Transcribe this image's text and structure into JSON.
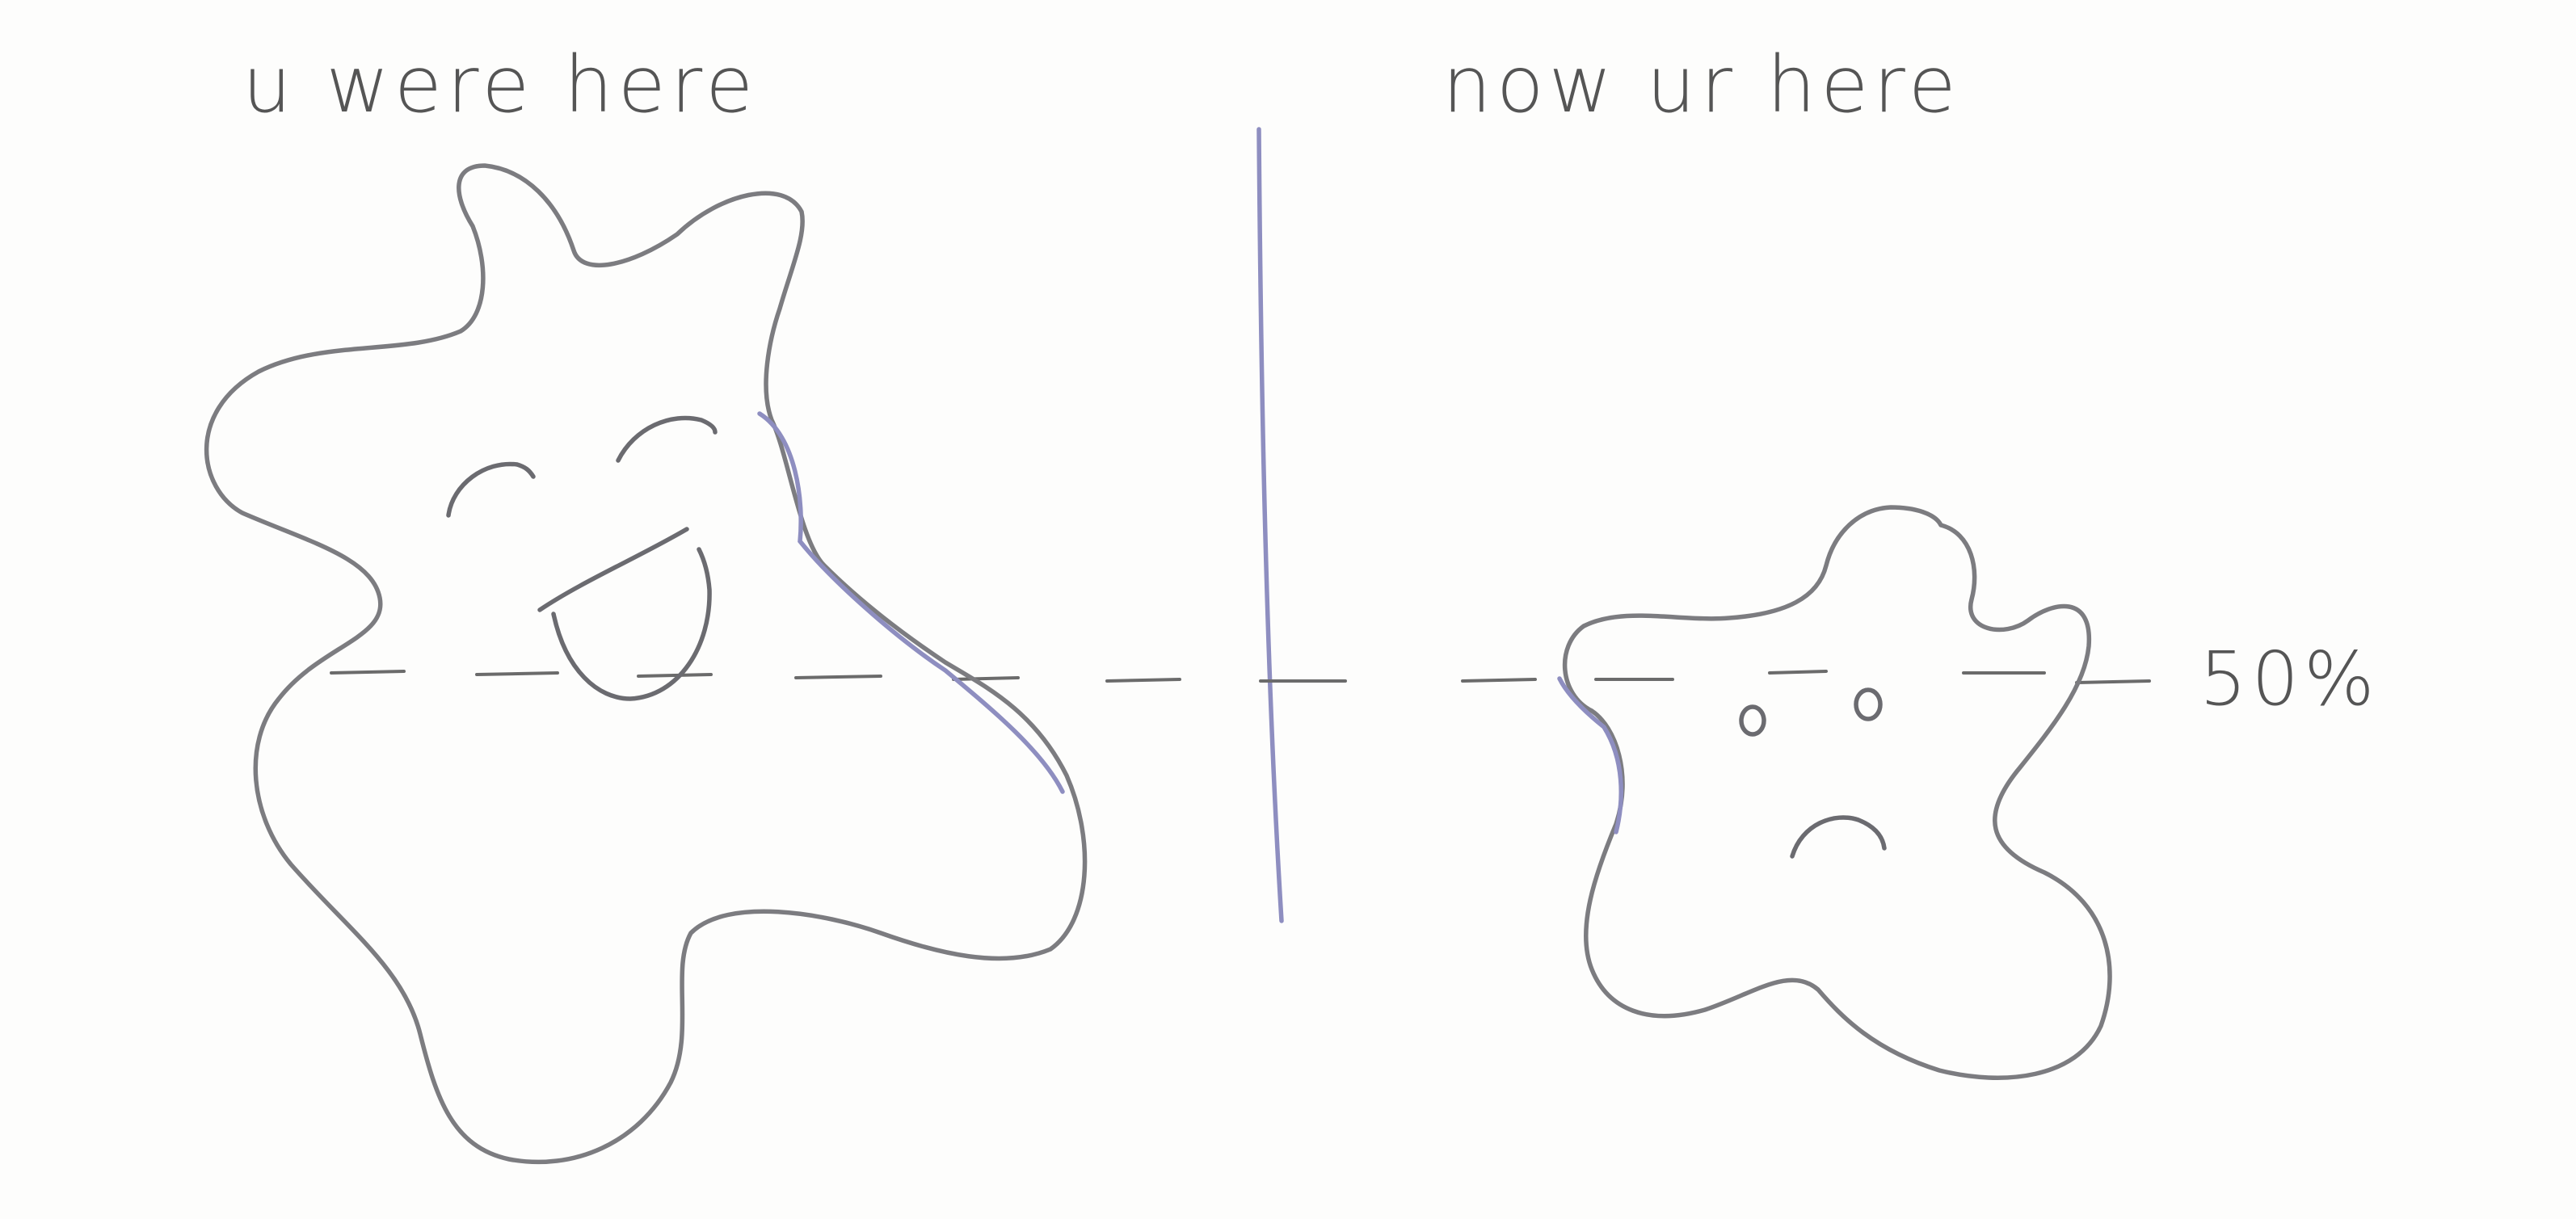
{
  "left_panel": {
    "title": "u were here",
    "mood": "happy"
  },
  "right_panel": {
    "title": "now ur here",
    "mood": "sad"
  },
  "level_marker": {
    "label": "50%",
    "value": 50
  },
  "colors": {
    "paper": "#fdfdfc",
    "pencil": "#7c7c80",
    "ink": "#555555",
    "blue_pen": "#8e8ec0"
  },
  "icons": {
    "left": "happy-blob-icon",
    "right": "sad-blob-icon"
  }
}
